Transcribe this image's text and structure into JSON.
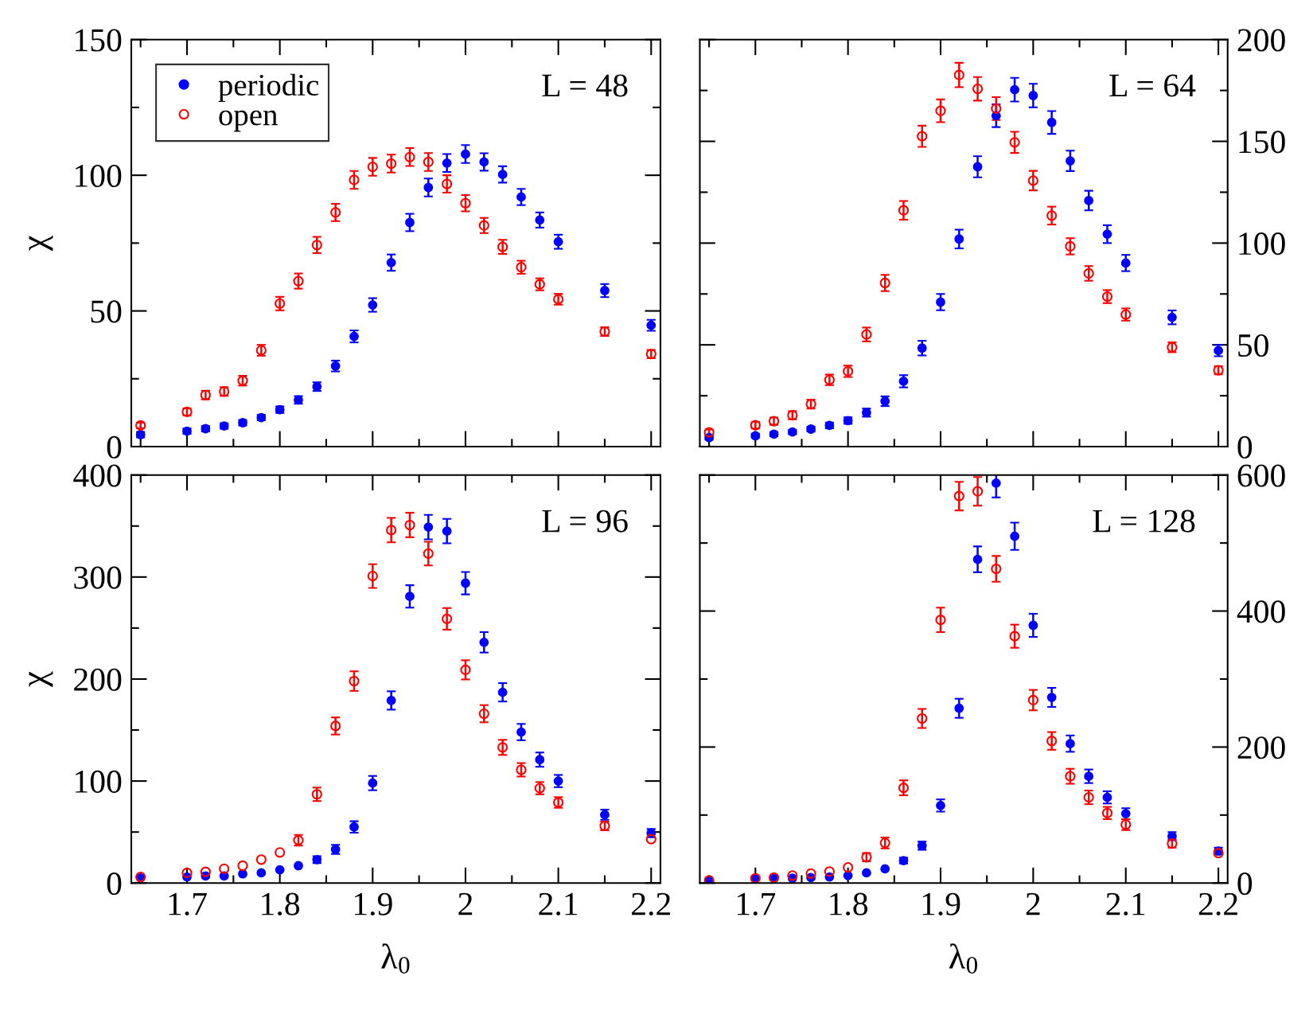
{
  "chart_data": [
    {
      "type": "scatter",
      "ylabel": "χ",
      "annotations": [
        "L = 48"
      ],
      "legend": "top left",
      "marker": "circle",
      "tick_labels": "y",
      "grid": false,
      "xlim": [
        1.64,
        2.21
      ],
      "ylim": [
        0,
        150
      ],
      "x": [
        1.65,
        1.7,
        1.72,
        1.74,
        1.76,
        1.78,
        1.8,
        1.82,
        1.84,
        1.86,
        1.88,
        1.9,
        1.92,
        1.94,
        1.96,
        1.98,
        2.0,
        2.02,
        2.04,
        2.06,
        2.08,
        2.1,
        2.15,
        2.2
      ],
      "xticks": [
        {
          "value": 1.65,
          "label": null
        },
        1.7,
        {
          "value": 1.75,
          "label": null
        },
        1.8,
        {
          "value": 1.85,
          "label": null
        },
        1.9,
        {
          "value": 1.95,
          "label": null
        },
        2,
        {
          "value": 2.05,
          "label": null
        },
        2.1,
        {
          "value": 2.15,
          "label": null
        },
        2.2
      ],
      "yticks": [
        0,
        {
          "value": 25,
          "label": null
        },
        50,
        {
          "value": 75,
          "label": null
        },
        100,
        {
          "value": 125,
          "label": null
        },
        150
      ],
      "series": [
        {
          "name": "periodic",
          "color": "#0000ff",
          "values": [
            4.4,
            5.7,
            6.6,
            7.6,
            8.8,
            10.7,
            13.6,
            17.2,
            22.1,
            29.7,
            40.6,
            52.2,
            67.8,
            82.6,
            95.5,
            104.5,
            107.8,
            104.9,
            100.3,
            92,
            83.5,
            75.5,
            57.5,
            44.7
          ],
          "errors": [
            1,
            1,
            1,
            1,
            1,
            1,
            1.2,
            1.4,
            1.6,
            2,
            2.2,
            2.5,
            3,
            3.2,
            3.3,
            3.3,
            3.3,
            3.2,
            3,
            3,
            2.8,
            2.6,
            2.4,
            2
          ]
        },
        {
          "name": "open",
          "color": "#ff0000",
          "values": [
            7.8,
            12.8,
            19,
            20.3,
            24.3,
            35.5,
            52.7,
            61,
            74.3,
            86.3,
            98.3,
            103.1,
            104.3,
            106.7,
            104.9,
            96.8,
            89.7,
            81.5,
            73.6,
            66.1,
            59.8,
            54.3,
            42.4,
            34.1
          ],
          "errors": [
            1,
            1.3,
            1.6,
            1.6,
            1.8,
            2,
            2.5,
            2.8,
            3,
            3.2,
            3.3,
            3.3,
            3.3,
            3.3,
            3.3,
            3.2,
            3,
            2.8,
            2.6,
            2.4,
            2.2,
            2,
            1.6,
            1.5
          ]
        }
      ]
    },
    {
      "type": "scatter",
      "annotations": [
        "L = 64"
      ],
      "legend": false,
      "marker": "circle",
      "tick_labels": "y",
      "grid": false,
      "xlim": [
        1.64,
        2.21
      ],
      "ylim": [
        0,
        200
      ],
      "x": [
        1.65,
        1.7,
        1.72,
        1.74,
        1.76,
        1.78,
        1.8,
        1.82,
        1.84,
        1.86,
        1.88,
        1.9,
        1.92,
        1.94,
        1.96,
        1.98,
        2.0,
        2.02,
        2.04,
        2.06,
        2.08,
        2.1,
        2.15,
        2.2
      ],
      "xticks": [
        {
          "value": 1.65,
          "label": null
        },
        1.7,
        {
          "value": 1.75,
          "label": null
        },
        1.8,
        {
          "value": 1.85,
          "label": null
        },
        1.9,
        {
          "value": 1.95,
          "label": null
        },
        2,
        {
          "value": 2.05,
          "label": null
        },
        2.1,
        {
          "value": 2.15,
          "label": null
        },
        2.2
      ],
      "yticks": [
        0,
        {
          "value": 25,
          "label": null
        },
        50,
        {
          "value": 75,
          "label": null
        },
        100,
        {
          "value": 125,
          "label": null
        },
        150,
        {
          "value": 175,
          "label": null
        },
        200
      ],
      "series": [
        {
          "color": "#0000ff",
          "values": [
            4.4,
            5.3,
            6.1,
            7.2,
            8.6,
            10.4,
            12.8,
            16.7,
            22.3,
            32.1,
            48.4,
            71,
            102,
            137.5,
            162.6,
            175.4,
            172.5,
            159.3,
            140.4,
            120.9,
            104.4,
            90.2,
            63.5,
            47.2
          ],
          "errors": [
            1,
            1,
            1,
            1,
            1.2,
            1.4,
            1.6,
            2,
            2.4,
            3,
            3.6,
            4,
            4.6,
            5.2,
            5.6,
            5.8,
            5.8,
            5.6,
            5,
            4.8,
            4.4,
            4,
            3.4,
            2.8
          ]
        },
        {
          "color": "#ff0000",
          "values": [
            7,
            10.5,
            12.5,
            15.4,
            20.9,
            32.8,
            37,
            55.1,
            80.4,
            116.1,
            152.5,
            165,
            182.6,
            175.8,
            166.1,
            149.5,
            130.7,
            113.5,
            98.4,
            85.1,
            73.7,
            64.9,
            48.8,
            37.5
          ],
          "errors": [
            1.4,
            1.6,
            1.8,
            2,
            2.2,
            2.6,
            2.8,
            3.4,
            4,
            4.6,
            5.2,
            5.6,
            6,
            5.8,
            5.6,
            5.2,
            4.8,
            4.4,
            4,
            3.6,
            3.2,
            3,
            2.4,
            2
          ]
        }
      ]
    },
    {
      "type": "scatter",
      "ylabel": "χ",
      "xlabel": "λ$_{0}$",
      "annotations": [
        "L = 96"
      ],
      "legend": false,
      "marker": "circle",
      "grid": false,
      "xlim": [
        1.64,
        2.21
      ],
      "ylim": [
        0,
        400
      ],
      "x": [
        1.65,
        1.7,
        1.72,
        1.74,
        1.76,
        1.78,
        1.8,
        1.82,
        1.84,
        1.86,
        1.88,
        1.9,
        1.92,
        1.94,
        1.96,
        1.98,
        2.0,
        2.02,
        2.04,
        2.06,
        2.08,
        2.1,
        2.15,
        2.2
      ],
      "xticks": [
        {
          "value": 1.65,
          "label": null
        },
        1.7,
        {
          "value": 1.75,
          "label": null
        },
        1.8,
        {
          "value": 1.85,
          "label": null
        },
        1.9,
        {
          "value": 1.95,
          "label": null
        },
        2,
        {
          "value": 2.05,
          "label": null
        },
        2.1,
        {
          "value": 2.15,
          "label": null
        },
        2.2
      ],
      "yticks": [
        0,
        {
          "value": 50,
          "label": null
        },
        100,
        {
          "value": 150,
          "label": null
        },
        200,
        {
          "value": 250,
          "label": null
        },
        300,
        {
          "value": 350,
          "label": null
        },
        400
      ],
      "series": [
        {
          "color": "#0000ff",
          "values": [
            5,
            6,
            7,
            7,
            9,
            10,
            13,
            17,
            23,
            33,
            55,
            98,
            179,
            281,
            349,
            345,
            294,
            236,
            187,
            148,
            121,
            100,
            67,
            49
          ],
          "errors": [
            null,
            null,
            null,
            null,
            null,
            null,
            null,
            null,
            3.4,
            4.4,
            5.6,
            7,
            9,
            11,
            12,
            12,
            11,
            10,
            9,
            8,
            7,
            6,
            5,
            4
          ]
        },
        {
          "color": "#ff0000",
          "values": [
            6,
            10,
            11,
            14,
            17,
            23,
            30,
            42,
            87,
            154,
            198,
            301,
            346,
            351,
            323,
            259,
            209,
            166,
            133,
            111,
            93,
            79,
            56,
            43
          ],
          "errors": [
            null,
            null,
            null,
            null,
            null,
            null,
            null,
            5.2,
            6.6,
            8.4,
            9.6,
            11.6,
            12,
            12,
            11.6,
            10.6,
            9.4,
            8.4,
            7.4,
            6.6,
            6,
            5.2,
            4.2,
            null
          ]
        }
      ]
    },
    {
      "type": "scatter",
      "xlabel": "λ$_{0}$",
      "annotations": [
        "L = 128"
      ],
      "legend": false,
      "marker": "circle",
      "grid": false,
      "xlim": [
        1.64,
        2.21
      ],
      "ylim": [
        0,
        600
      ],
      "x": [
        1.65,
        1.7,
        1.72,
        1.74,
        1.76,
        1.78,
        1.8,
        1.82,
        1.84,
        1.86,
        1.88,
        1.9,
        1.92,
        1.94,
        1.96,
        1.98,
        2.0,
        2.02,
        2.04,
        2.06,
        2.08,
        2.1,
        2.15,
        2.2
      ],
      "xticks": [
        {
          "value": 1.65,
          "label": null
        },
        1.7,
        {
          "value": 1.75,
          "label": null
        },
        1.8,
        {
          "value": 1.85,
          "label": null
        },
        1.9,
        {
          "value": 1.95,
          "label": null
        },
        2,
        {
          "value": 2.05,
          "label": null
        },
        2.1,
        {
          "value": 2.15,
          "label": null
        },
        2.2
      ],
      "yticks": [
        0,
        {
          "value": 100,
          "label": null
        },
        200,
        {
          "value": 300,
          "label": null
        },
        400,
        {
          "value": 500,
          "label": null
        },
        600
      ],
      "series": [
        {
          "color": "#0000ff",
          "values": [
            3,
            6,
            7,
            7,
            8,
            9,
            11,
            15,
            21,
            33,
            55,
            114,
            257,
            476,
            588,
            510,
            379,
            273,
            205,
            157,
            126,
            102,
            69,
            47
          ],
          "errors": [
            null,
            null,
            null,
            null,
            null,
            null,
            null,
            null,
            null,
            4.4,
            6,
            9,
            14,
            19,
            21,
            20,
            17,
            14,
            12,
            10,
            9,
            8,
            6,
            5
          ]
        },
        {
          "color": "#ff0000",
          "values": [
            4,
            7,
            8,
            11,
            14,
            17,
            23,
            38,
            59,
            140,
            242,
            387,
            569,
            576,
            462,
            363,
            269,
            209,
            157,
            126,
            103,
            86,
            58,
            44
          ],
          "errors": [
            null,
            null,
            null,
            null,
            null,
            null,
            null,
            6,
            8,
            11,
            14,
            18,
            21,
            21,
            19,
            17,
            15,
            13,
            11,
            10,
            9,
            8,
            6,
            null
          ]
        }
      ]
    }
  ]
}
